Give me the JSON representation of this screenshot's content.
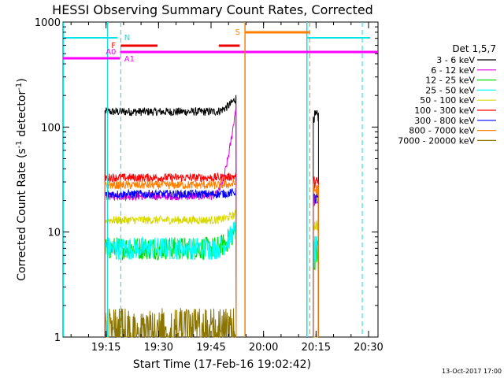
{
  "chart_data": {
    "type": "line",
    "title": "HESSI Observing Summary Count Rates, Corrected",
    "xlabel": "Start Time (17-Feb-16 19:02:42)",
    "ylabel_main": "Corrected Count Rate (s",
    "ylabel_sup1": "-1",
    "ylabel_mid": " detector",
    "ylabel_sup2": "-1",
    "ylabel_end": ")",
    "y_scale": "log",
    "ylim": [
      1,
      1000
    ],
    "xlim_minutes": [
      0,
      90
    ],
    "x_ticks": [
      {
        "minute": 12.3,
        "label": "19:15"
      },
      {
        "minute": 27.3,
        "label": "19:30"
      },
      {
        "minute": 42.3,
        "label": "19:45"
      },
      {
        "minute": 57.3,
        "label": "20:00"
      },
      {
        "minute": 72.3,
        "label": "20:15"
      },
      {
        "minute": 87.3,
        "label": "20:30"
      }
    ],
    "y_ticks": [
      {
        "value": 1,
        "label": "1"
      },
      {
        "value": 10,
        "label": "10"
      },
      {
        "value": 100,
        "label": "100"
      },
      {
        "value": 1000,
        "label": "1000"
      }
    ],
    "legend_title": "Det 1,5,7",
    "legend_placement": "right",
    "series": [
      {
        "name": "3 - 6 keV",
        "color": "#000000",
        "level": 140,
        "end_level": 190
      },
      {
        "name": "6 - 12 keV",
        "color": "#e000e0",
        "level": 22,
        "end_level": 170
      },
      {
        "name": "12 - 25 keV",
        "color": "#00dd00",
        "level": 7,
        "end_level": 11
      },
      {
        "name": "25 - 50 keV",
        "color": "#00ffff",
        "level": 7,
        "end_level": 11
      },
      {
        "name": "50 - 100 keV",
        "color": "#d8d800",
        "level": 13,
        "end_level": 15
      },
      {
        "name": "100 - 300 keV",
        "color": "#ff0000",
        "level": 33,
        "end_level": 34
      },
      {
        "name": "300 - 800 keV",
        "color": "#0000ff",
        "level": 23,
        "end_level": 24
      },
      {
        "name": "800 - 7000 keV",
        "color": "#ff8000",
        "level": 28,
        "end_level": 29
      },
      {
        "name": "7000 - 20000 keV",
        "color": "#8b7500",
        "level": 1.5,
        "end_level": 1.5
      }
    ],
    "flag_labels": {
      "N": "N",
      "F": "F",
      "AO": "A0",
      "A1": "A1",
      "S": "S"
    },
    "footer_date": "13-Oct-2017 17:00"
  }
}
